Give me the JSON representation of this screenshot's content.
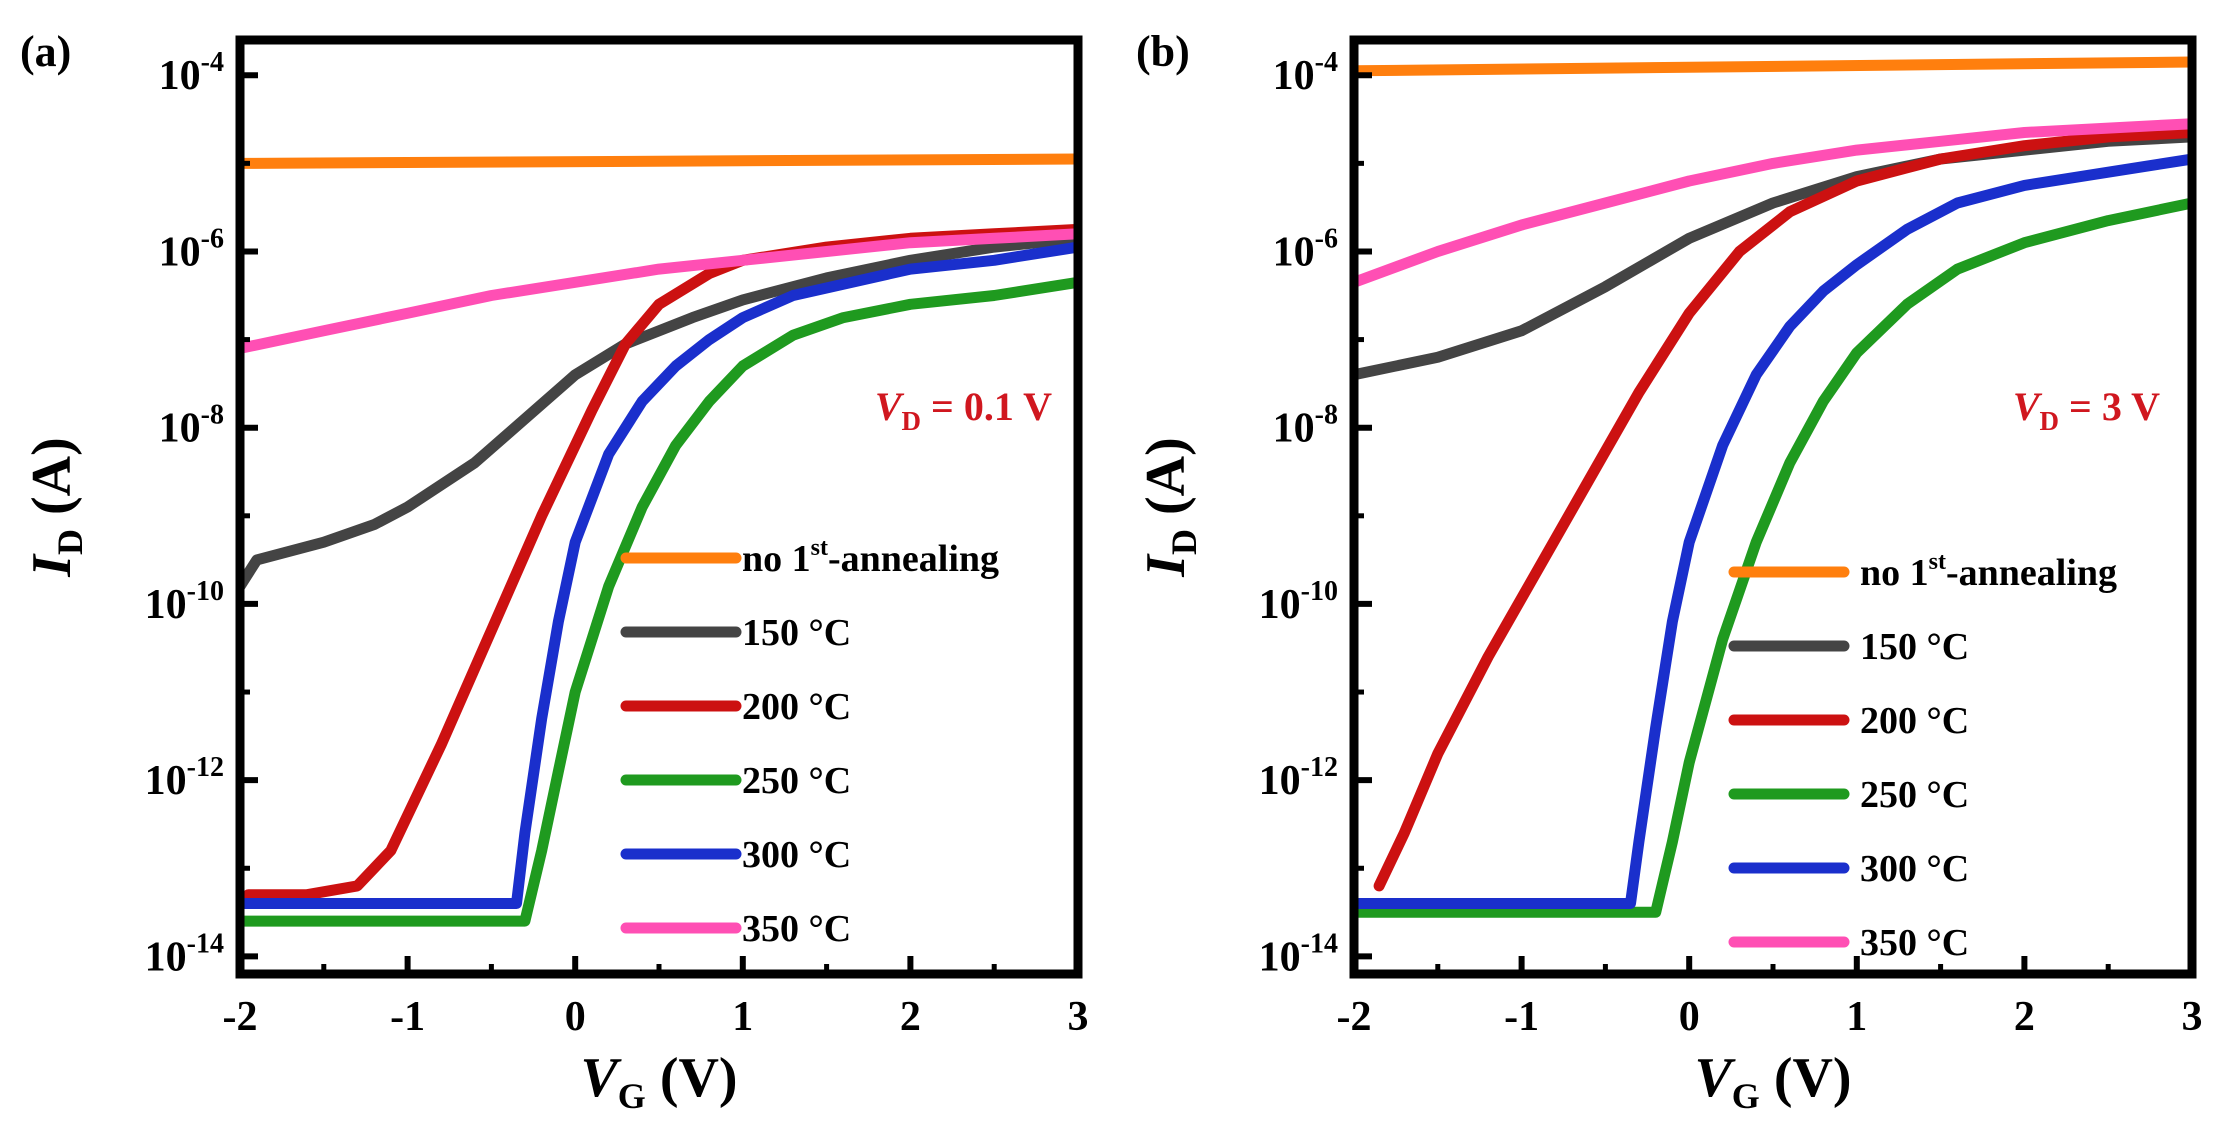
{
  "chart_data": [
    {
      "panel_label": "(a)",
      "type": "line",
      "yscale": "log",
      "xlabel": "V",
      "xlabel_sub": "G",
      "xlabel_unit": "(V)",
      "ylabel": "I",
      "ylabel_sub": "D",
      "ylabel_unit": "(A)",
      "xlim": [
        -2,
        3
      ],
      "ylim_exp": [
        -14.2,
        -3.6
      ],
      "x_ticks": [
        "-2",
        "-1",
        "0",
        "1",
        "2",
        "3"
      ],
      "y_tick_exps": [
        "-4",
        "-6",
        "-8",
        "-10",
        "-12",
        "-14"
      ],
      "annotation": {
        "var": "V",
        "sub": "D",
        "text": " = 0.1 V",
        "color": "#d0171f"
      },
      "series": [
        {
          "name": "no 1",
          "sup": "st",
          "suffix": "-annealing",
          "color": "#ff7f0e",
          "x": [
            -2,
            3
          ],
          "log_i": [
            -5.0,
            -4.95
          ]
        },
        {
          "name": "150 °C",
          "color": "#444444",
          "x": [
            -2,
            -1.9,
            -1.5,
            -1.2,
            -1,
            -0.6,
            -0.3,
            0,
            0.3,
            0.7,
            1,
            1.5,
            2,
            2.5,
            3
          ],
          "log_i": [
            -9.8,
            -9.5,
            -9.3,
            -9.1,
            -8.9,
            -8.4,
            -7.9,
            -7.4,
            -7.05,
            -6.75,
            -6.55,
            -6.3,
            -6.1,
            -5.95,
            -5.85
          ]
        },
        {
          "name": "200 °C",
          "color": "#cc1111",
          "x": [
            -1.95,
            -1.6,
            -1.3,
            -1.1,
            -0.8,
            -0.5,
            -0.2,
            0.1,
            0.3,
            0.5,
            0.8,
            1,
            1.5,
            2,
            2.5,
            3
          ],
          "log_i": [
            -13.3,
            -13.3,
            -13.2,
            -12.8,
            -11.6,
            -10.3,
            -9.0,
            -7.8,
            -7.05,
            -6.6,
            -6.25,
            -6.1,
            -5.95,
            -5.85,
            -5.8,
            -5.75
          ]
        },
        {
          "name": "250 °C",
          "color": "#1f9a1f",
          "x": [
            -2,
            -0.3,
            -0.2,
            -0.1,
            0,
            0.2,
            0.4,
            0.6,
            0.8,
            1,
            1.3,
            1.6,
            2,
            2.5,
            3
          ],
          "log_i": [
            -13.6,
            -13.6,
            -12.8,
            -11.9,
            -11.0,
            -9.8,
            -8.9,
            -8.2,
            -7.7,
            -7.3,
            -6.95,
            -6.75,
            -6.6,
            -6.5,
            -6.35
          ]
        },
        {
          "name": "300 °C",
          "color": "#1a2fcc",
          "x": [
            -2,
            -0.35,
            -0.3,
            -0.2,
            -0.1,
            0,
            0.2,
            0.4,
            0.6,
            0.8,
            1,
            1.3,
            2,
            2.5,
            3
          ],
          "log_i": [
            -13.4,
            -13.4,
            -12.6,
            -11.3,
            -10.2,
            -9.3,
            -8.3,
            -7.7,
            -7.3,
            -7.0,
            -6.75,
            -6.5,
            -6.2,
            -6.1,
            -5.95
          ]
        },
        {
          "name": "350 °C",
          "color": "#ff4fb4",
          "x": [
            -2,
            -1.5,
            -1,
            -0.5,
            0,
            0.5,
            1,
            1.5,
            2,
            2.5,
            3
          ],
          "log_i": [
            -7.1,
            -6.9,
            -6.7,
            -6.5,
            -6.35,
            -6.2,
            -6.1,
            -6.0,
            -5.9,
            -5.85,
            -5.8
          ]
        }
      ]
    },
    {
      "panel_label": "(b)",
      "type": "line",
      "yscale": "log",
      "xlabel": "V",
      "xlabel_sub": "G",
      "xlabel_unit": "(V)",
      "ylabel": "I",
      "ylabel_sub": "D",
      "ylabel_unit": "(A)",
      "xlim": [
        -2,
        3
      ],
      "ylim_exp": [
        -14.2,
        -3.6
      ],
      "x_ticks": [
        "-2",
        "-1",
        "0",
        "1",
        "2",
        "3"
      ],
      "y_tick_exps": [
        "-4",
        "-6",
        "-8",
        "-10",
        "-12",
        "-14"
      ],
      "annotation": {
        "var": "V",
        "sub": "D",
        "text": " = 3 V",
        "color": "#d0171f"
      },
      "series": [
        {
          "name": "no 1",
          "sup": "st",
          "suffix": "-annealing",
          "color": "#ff7f0e",
          "x": [
            -2,
            3
          ],
          "log_i": [
            -3.95,
            -3.85
          ]
        },
        {
          "name": "150 °C",
          "color": "#444444",
          "x": [
            -2,
            -1.5,
            -1,
            -0.5,
            0,
            0.5,
            1,
            1.5,
            2,
            2.5,
            3
          ],
          "log_i": [
            -7.4,
            -7.2,
            -6.9,
            -6.4,
            -5.85,
            -5.45,
            -5.15,
            -4.95,
            -4.85,
            -4.75,
            -4.7
          ]
        },
        {
          "name": "200 °C",
          "color": "#cc1111",
          "x": [
            -1.85,
            -1.7,
            -1.5,
            -1.2,
            -0.9,
            -0.6,
            -0.3,
            0,
            0.3,
            0.6,
            1,
            1.5,
            2,
            2.5,
            3
          ],
          "log_i": [
            -13.2,
            -12.6,
            -11.7,
            -10.6,
            -9.6,
            -8.6,
            -7.6,
            -6.7,
            -6.0,
            -5.55,
            -5.2,
            -4.95,
            -4.8,
            -4.7,
            -4.65
          ]
        },
        {
          "name": "250 °C",
          "color": "#1f9a1f",
          "x": [
            -2,
            -0.2,
            -0.1,
            0,
            0.2,
            0.4,
            0.6,
            0.8,
            1,
            1.3,
            1.6,
            2,
            2.5,
            3
          ],
          "log_i": [
            -13.5,
            -13.5,
            -12.7,
            -11.8,
            -10.4,
            -9.3,
            -8.4,
            -7.7,
            -7.15,
            -6.6,
            -6.2,
            -5.9,
            -5.65,
            -5.45
          ]
        },
        {
          "name": "300 °C",
          "color": "#1a2fcc",
          "x": [
            -2,
            -0.35,
            -0.3,
            -0.2,
            -0.1,
            0,
            0.2,
            0.4,
            0.6,
            0.8,
            1,
            1.3,
            1.6,
            2,
            2.5,
            3
          ],
          "log_i": [
            -13.4,
            -13.4,
            -12.7,
            -11.4,
            -10.2,
            -9.3,
            -8.2,
            -7.4,
            -6.85,
            -6.45,
            -6.15,
            -5.75,
            -5.45,
            -5.25,
            -5.1,
            -4.95
          ]
        },
        {
          "name": "350 °C",
          "color": "#ff4fb4",
          "x": [
            -2,
            -1.5,
            -1,
            -0.5,
            0,
            0.5,
            1,
            1.5,
            2,
            2.5,
            3
          ],
          "log_i": [
            -6.35,
            -6.0,
            -5.7,
            -5.45,
            -5.2,
            -5.0,
            -4.85,
            -4.75,
            -4.65,
            -4.6,
            -4.55
          ]
        }
      ]
    }
  ]
}
